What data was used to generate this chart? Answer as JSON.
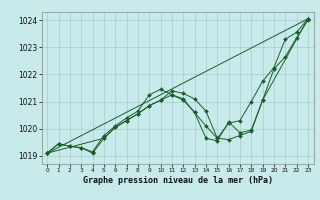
{
  "xlabel": "Graphe pression niveau de la mer (hPa)",
  "ylim": [
    1018.7,
    1024.3
  ],
  "xlim": [
    -0.5,
    23.5
  ],
  "yticks": [
    1019,
    1020,
    1021,
    1022,
    1023,
    1024
  ],
  "xticks": [
    0,
    1,
    2,
    3,
    4,
    5,
    6,
    7,
    8,
    9,
    10,
    11,
    12,
    13,
    14,
    15,
    16,
    17,
    18,
    19,
    20,
    21,
    22,
    23
  ],
  "bg_color": "#c8eaea",
  "grid_color": "#a8cccc",
  "line_color": "#1a5e2a",
  "line1": {
    "x": [
      0,
      1,
      2,
      3,
      4,
      5,
      6,
      7,
      8,
      9,
      10,
      11,
      12,
      13,
      14,
      15,
      16,
      17,
      18,
      19,
      20,
      21,
      22,
      23
    ],
    "y": [
      1019.1,
      1019.45,
      1019.35,
      1019.3,
      1019.1,
      1019.65,
      1020.05,
      1020.3,
      1020.55,
      1020.85,
      1021.05,
      1021.4,
      1021.3,
      1021.1,
      1020.65,
      1019.65,
      1019.6,
      1019.75,
      1019.9,
      1021.05,
      1022.2,
      1022.65,
      1023.35,
      1024.0
    ]
  },
  "line2": {
    "x": [
      0,
      1,
      2,
      3,
      4,
      5,
      6,
      7,
      8,
      9,
      10,
      11,
      12,
      13,
      14,
      15,
      16,
      17,
      18,
      19,
      20,
      21,
      22,
      23
    ],
    "y": [
      1019.1,
      1019.45,
      1019.35,
      1019.3,
      1019.15,
      1019.75,
      1020.1,
      1020.4,
      1020.65,
      1021.25,
      1021.45,
      1021.25,
      1021.1,
      1020.6,
      1020.1,
      1019.65,
      1020.2,
      1020.3,
      1021.0,
      1021.75,
      1022.25,
      1023.3,
      1023.55,
      1024.05
    ]
  },
  "line3": {
    "x": [
      0,
      23
    ],
    "y": [
      1019.1,
      1024.05
    ]
  },
  "line4": {
    "x": [
      0,
      5,
      6,
      7,
      8,
      9,
      10,
      11,
      12,
      13,
      14,
      15,
      16,
      17,
      18,
      19,
      23
    ],
    "y": [
      1019.1,
      1019.65,
      1020.05,
      1020.3,
      1020.55,
      1020.85,
      1021.05,
      1021.25,
      1021.05,
      1020.6,
      1019.65,
      1019.55,
      1020.25,
      1019.85,
      1019.95,
      1021.05,
      1024.05
    ]
  }
}
